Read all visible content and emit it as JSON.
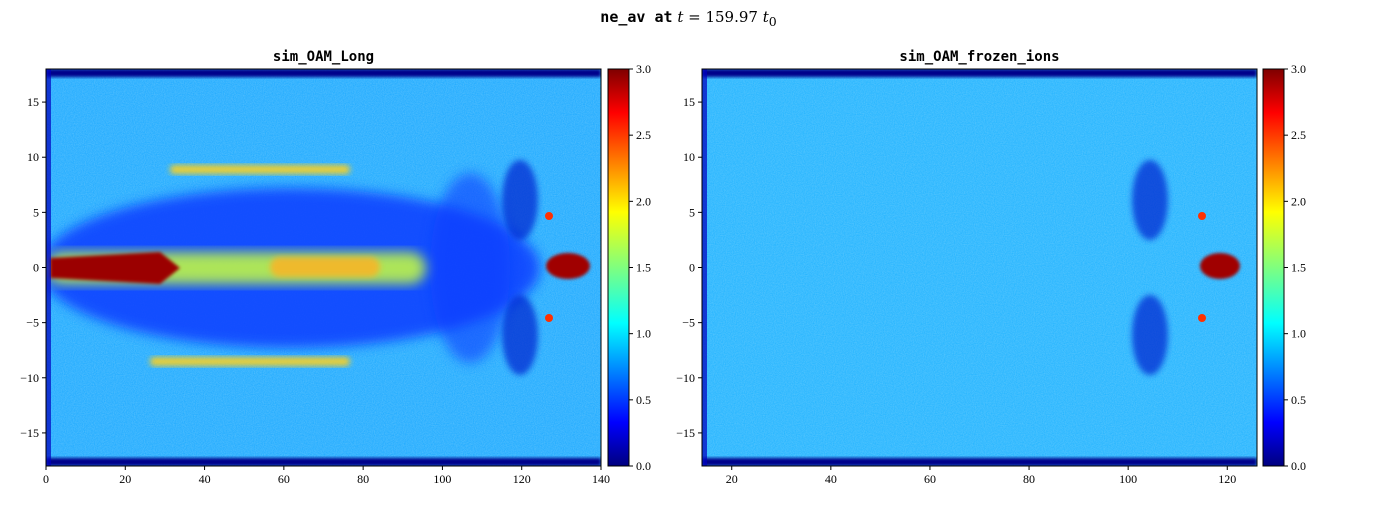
{
  "figure": {
    "title_code": "ne_av at",
    "title_var": "t",
    "title_eq": " = 159.97 ",
    "title_unit": "t",
    "title_sub": "0"
  },
  "chart_data": [
    {
      "type": "heatmap",
      "title": "sim_OAM_Long",
      "xlabel": "",
      "ylabel": "",
      "xlim": [
        0,
        140
      ],
      "ylim": [
        -18,
        18
      ],
      "x_ticks": [
        0,
        20,
        40,
        60,
        80,
        100,
        120,
        140
      ],
      "y_ticks": [
        -15,
        -10,
        -5,
        0,
        5,
        10,
        15
      ],
      "colormap": "jet",
      "colorbar": {
        "vmin": 0.0,
        "vmax": 3.0,
        "ticks": [
          "0.0",
          "0.5",
          "1.0",
          "1.5",
          "2.0",
          "2.5",
          "3.0"
        ]
      },
      "background_level": 1.0,
      "features": [
        {
          "name": "on-axis channel",
          "x_range": [
            0,
            100
          ],
          "y": 0,
          "level": "1.6-3.0"
        },
        {
          "name": "upper density wall",
          "x_range": [
            40,
            85
          ],
          "y": 8.5,
          "level": "1.8-2.3"
        },
        {
          "name": "lower density wall",
          "x_range": [
            40,
            85
          ],
          "y": -8.5,
          "level": "1.8-2.3"
        },
        {
          "name": "cavity",
          "x_range": [
            10,
            110
          ],
          "y_range": [
            -8,
            8
          ],
          "level": "0.3-0.6"
        },
        {
          "name": "laser front spike",
          "x": 131,
          "y": 0,
          "level": "3.0"
        }
      ]
    },
    {
      "type": "heatmap",
      "title": "sim_OAM_frozen_ions",
      "xlabel": "",
      "ylabel": "",
      "xlim": [
        14,
        126
      ],
      "ylim": [
        -18,
        18
      ],
      "x_ticks": [
        20,
        40,
        60,
        80,
        100,
        120
      ],
      "y_ticks": [
        -15,
        -10,
        -5,
        0,
        5,
        10,
        15
      ],
      "colormap": "jet",
      "colorbar": {
        "vmin": 0.0,
        "vmax": 3.0,
        "ticks": [
          "0.0",
          "0.5",
          "1.0",
          "1.5",
          "2.0",
          "2.5",
          "3.0"
        ]
      },
      "background_level": 1.0,
      "features": [
        {
          "name": "laser front spike",
          "x": 119,
          "y": 0,
          "level": "3.0"
        }
      ]
    }
  ]
}
